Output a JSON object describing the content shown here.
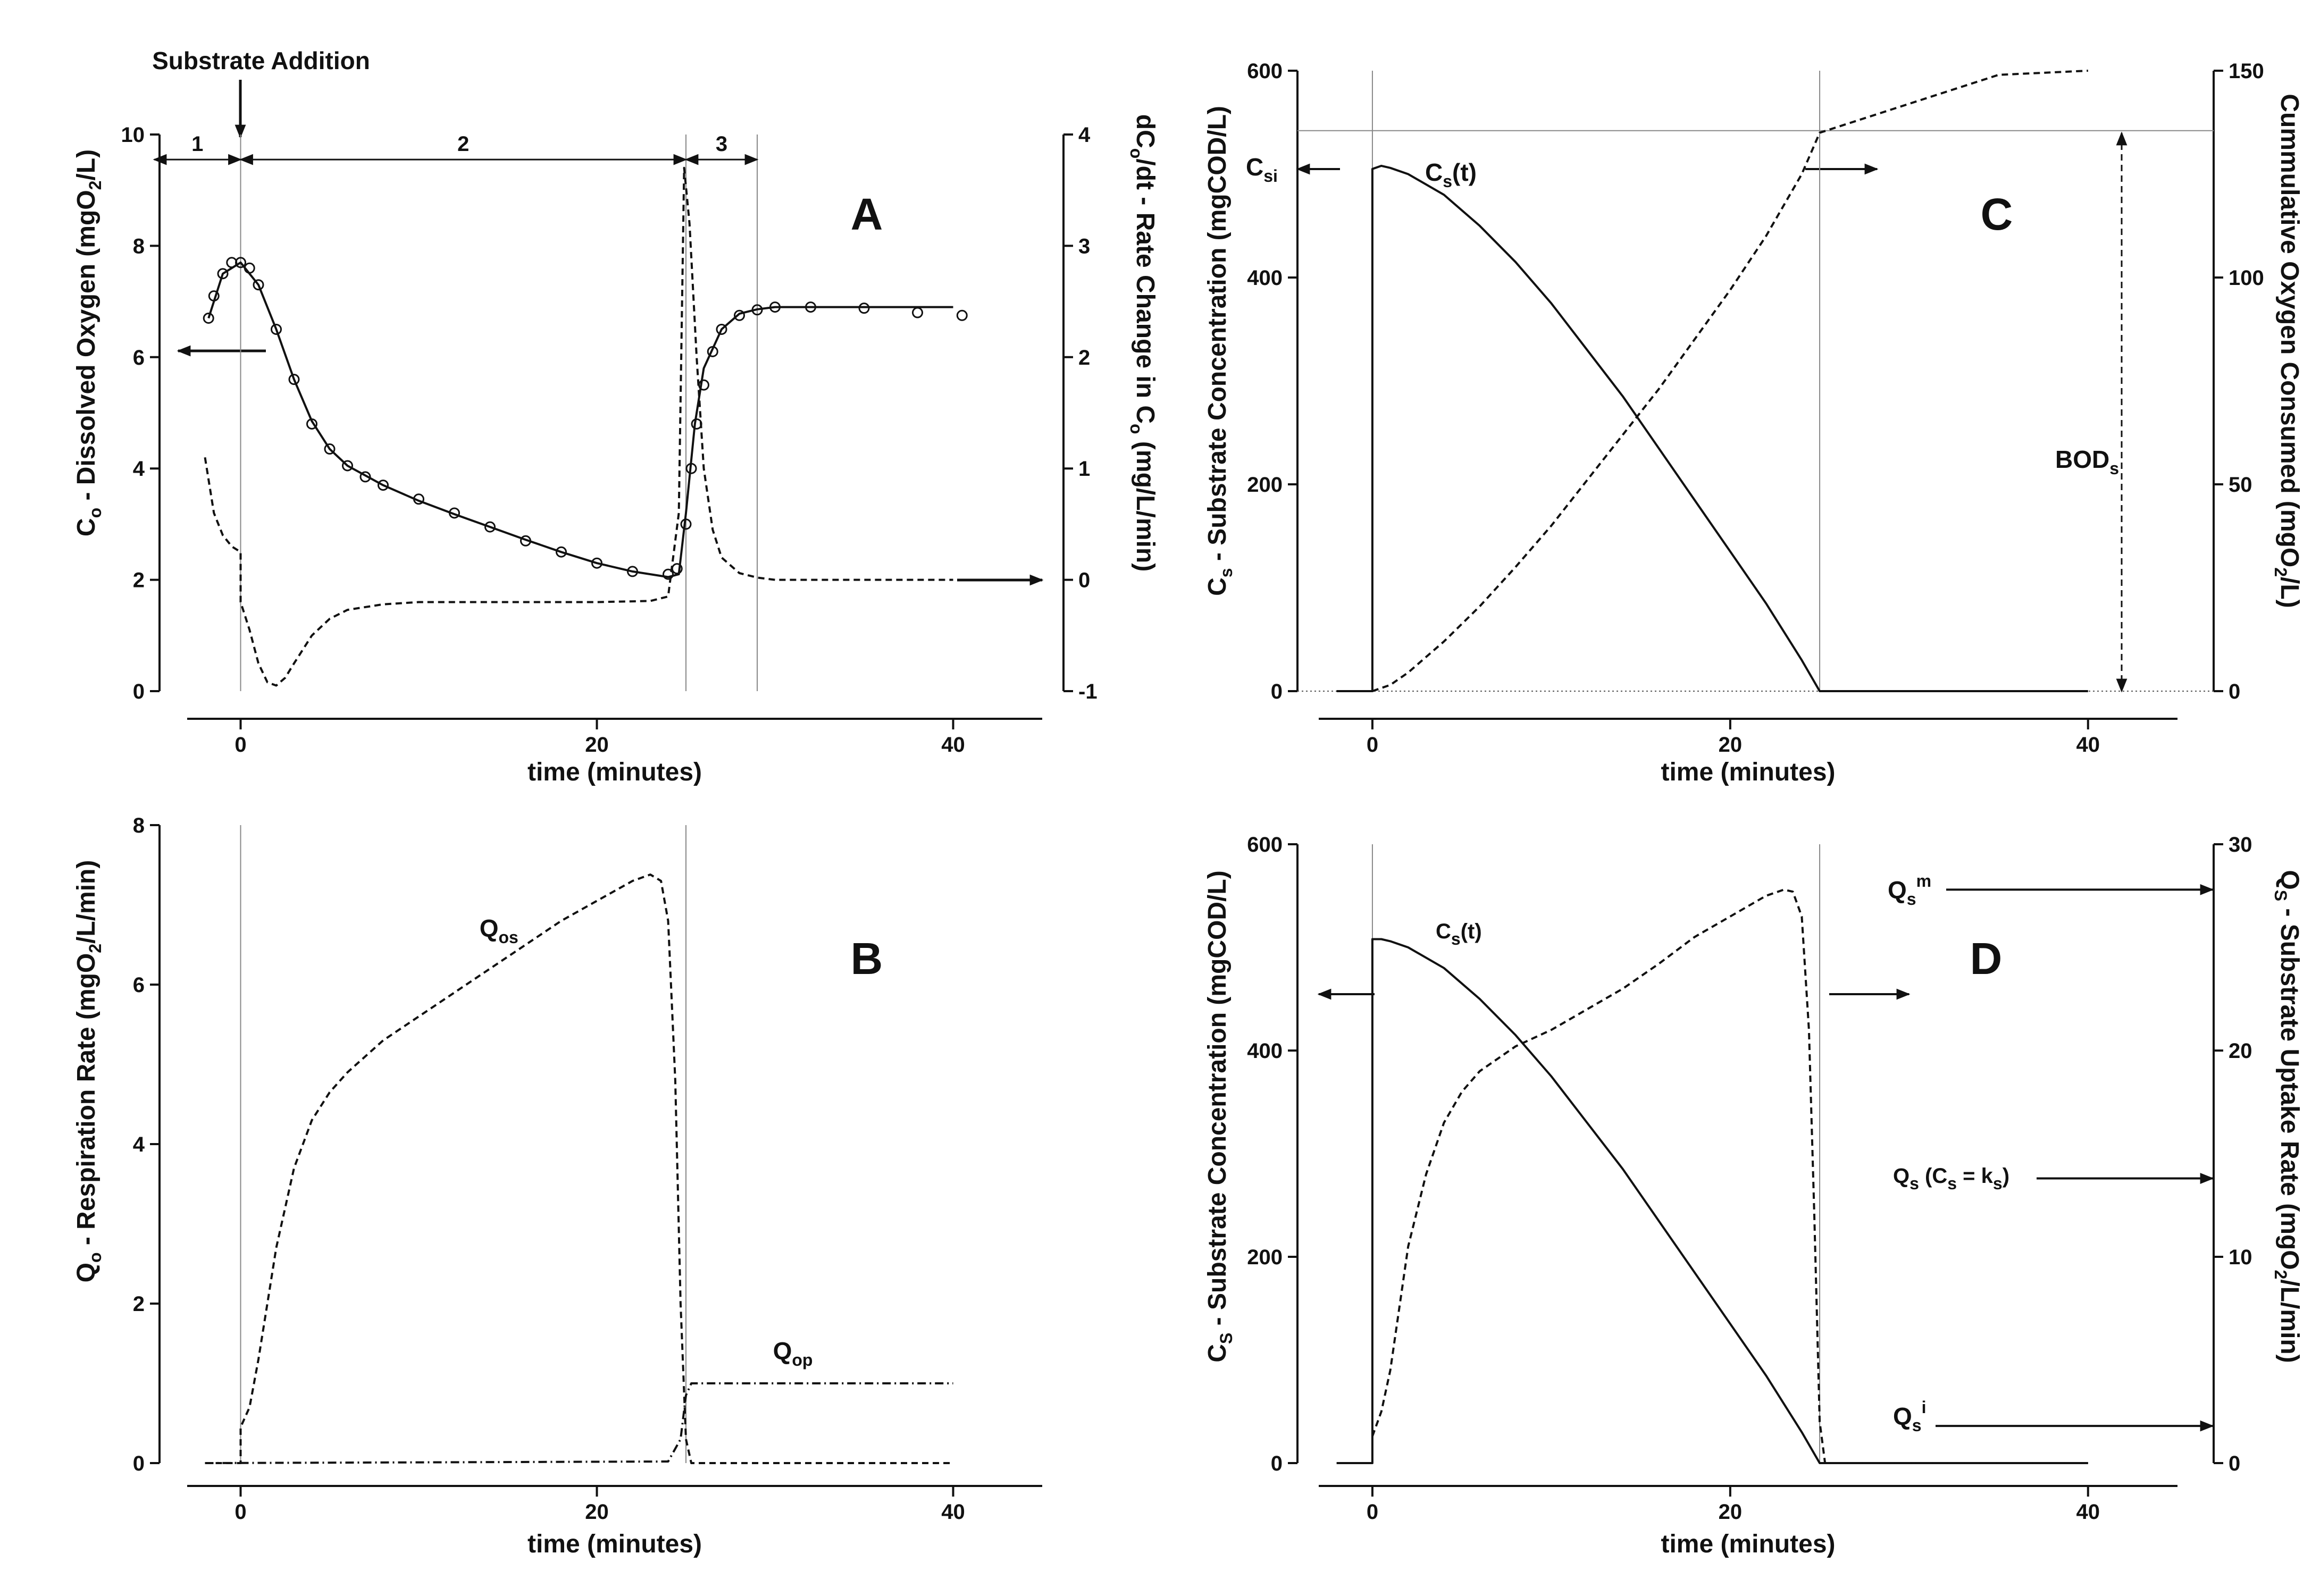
{
  "figure": {
    "arrow_annotation": "Substrate Addition"
  },
  "chart_data": [
    {
      "id": "A",
      "type": "line",
      "panel_label": "A",
      "xlabel": "time (minutes)",
      "ylabel": "C_o - Dissolved Oxygen (mgO_2/L)",
      "ylabel_right": "dC_o/dt - Rate Change in C_o (mg/L/min)",
      "xlim": [
        -3,
        45
      ],
      "ylim": [
        0,
        10
      ],
      "ylim_right": [
        -1,
        4
      ],
      "x_ticks": [
        0,
        20,
        40
      ],
      "y_ticks": [
        0,
        2,
        4,
        6,
        8,
        10
      ],
      "y_ticks_right": [
        -1,
        0,
        1,
        2,
        3,
        4
      ],
      "vlines": [
        0,
        25,
        29
      ],
      "phases": [
        {
          "label": "1",
          "from": -3,
          "to": 0
        },
        {
          "label": "2",
          "from": 0,
          "to": 25
        },
        {
          "label": "3",
          "from": 25,
          "to": 29
        }
      ],
      "series": [
        {
          "name": "C_o measured",
          "style": "circles",
          "axis": "left",
          "x": [
            -1.8,
            -1.5,
            -1,
            -0.5,
            0,
            0.5,
            1,
            2,
            3,
            4,
            5,
            6,
            7,
            8,
            10,
            12,
            14,
            16,
            18,
            20,
            22,
            24,
            24.5,
            25,
            25.3,
            25.6,
            26,
            26.5,
            27,
            28,
            29,
            30,
            32,
            35,
            38,
            40.5
          ],
          "values": [
            6.7,
            7.1,
            7.5,
            7.7,
            7.7,
            7.6,
            7.3,
            6.5,
            5.6,
            4.8,
            4.35,
            4.05,
            3.85,
            3.7,
            3.45,
            3.2,
            2.95,
            2.7,
            2.5,
            2.3,
            2.15,
            2.1,
            2.2,
            3.0,
            4.0,
            4.8,
            5.5,
            6.1,
            6.5,
            6.75,
            6.85,
            6.9,
            6.9,
            6.88,
            6.8,
            6.75
          ]
        },
        {
          "name": "C_o model",
          "style": "solid",
          "axis": "left",
          "x": [
            -1.8,
            -1,
            0,
            1,
            2,
            3,
            4,
            5,
            6,
            8,
            10,
            12,
            14,
            16,
            18,
            20,
            22,
            24,
            24.6,
            25,
            25.5,
            26,
            27,
            28,
            29,
            30,
            35,
            40
          ],
          "values": [
            6.7,
            7.5,
            7.7,
            7.3,
            6.5,
            5.6,
            4.85,
            4.35,
            4.05,
            3.7,
            3.42,
            3.18,
            2.95,
            2.72,
            2.5,
            2.3,
            2.15,
            2.05,
            2.1,
            3.2,
            4.8,
            5.8,
            6.5,
            6.78,
            6.86,
            6.9,
            6.9,
            6.9
          ]
        },
        {
          "name": "dC_o/dt",
          "style": "dashed",
          "axis": "right",
          "x": [
            -2,
            -1.5,
            -1,
            -0.5,
            0,
            0,
            0.5,
            1,
            1.5,
            2,
            2.5,
            3,
            4,
            5,
            6,
            8,
            10,
            15,
            20,
            23,
            24,
            24.6,
            24.9,
            25.2,
            25.6,
            26,
            26.5,
            27,
            28,
            29,
            30,
            35,
            40
          ],
          "values": [
            1.1,
            0.6,
            0.4,
            0.3,
            0.25,
            -0.2,
            -0.45,
            -0.75,
            -0.92,
            -0.95,
            -0.88,
            -0.75,
            -0.5,
            -0.35,
            -0.27,
            -0.22,
            -0.2,
            -0.2,
            -0.2,
            -0.19,
            -0.15,
            0.6,
            3.7,
            3.2,
            2.0,
            1.0,
            0.45,
            0.2,
            0.06,
            0.02,
            0.0,
            0.0,
            0.0
          ]
        }
      ]
    },
    {
      "id": "B",
      "type": "line",
      "panel_label": "B",
      "xlabel": "time (minutes)",
      "ylabel": "Q_o - Respiration Rate (mgO_2/L/min)",
      "xlim": [
        -3,
        45
      ],
      "ylim": [
        0,
        8
      ],
      "x_ticks": [
        0,
        20,
        40
      ],
      "y_ticks": [
        0,
        2,
        4,
        6,
        8
      ],
      "vlines": [
        0,
        25
      ],
      "series": [
        {
          "name": "Q_os",
          "style": "dashed",
          "x": [
            -2,
            0,
            0,
            0.5,
            1,
            1.5,
            2,
            3,
            4,
            5,
            6,
            8,
            10,
            12,
            14,
            16,
            18,
            20,
            22,
            23,
            23.6,
            24,
            24.4,
            24.7,
            25,
            25.3,
            30,
            40
          ],
          "values": [
            0,
            0,
            0.45,
            0.7,
            1.3,
            2.0,
            2.7,
            3.7,
            4.3,
            4.65,
            4.9,
            5.3,
            5.6,
            5.9,
            6.2,
            6.5,
            6.8,
            7.05,
            7.3,
            7.38,
            7.3,
            6.8,
            4.8,
            2.0,
            0.3,
            0,
            0,
            0
          ]
        },
        {
          "name": "Q_op",
          "style": "dashdot",
          "x": [
            -2,
            24,
            24.7,
            25,
            25.3,
            40
          ],
          "values": [
            0,
            0.02,
            0.3,
            0.85,
            1.0,
            1.0
          ]
        }
      ],
      "annotations": [
        {
          "text": "Q_os",
          "x": 14.5,
          "y": 6.6
        },
        {
          "text": "Q_op",
          "x": 31,
          "y": 1.3
        }
      ]
    },
    {
      "id": "C",
      "type": "line",
      "panel_label": "C",
      "xlabel": "time (minutes)",
      "ylabel": "C_s - Substrate Concentration (mgCOD/L)",
      "ylabel_right": "Cummulative Oxygen Consumed (mgO_2/L)",
      "xlim": [
        -3,
        45
      ],
      "ylim": [
        0,
        600
      ],
      "ylim_right": [
        0,
        150
      ],
      "x_ticks": [
        0,
        20,
        40
      ],
      "y_ticks": [
        0,
        200,
        400,
        600
      ],
      "y_ticks_right": [
        0,
        50,
        100,
        150
      ],
      "vlines": [
        0,
        25
      ],
      "hline": 542,
      "series": [
        {
          "name": "C_s(t)",
          "style": "solid",
          "axis": "left",
          "x": [
            -2,
            0,
            0,
            0.5,
            1,
            2,
            4,
            6,
            8,
            10,
            12,
            14,
            16,
            18,
            20,
            22,
            24,
            25,
            30,
            40
          ],
          "values": [
            0,
            0,
            505,
            508,
            506,
            500,
            480,
            450,
            415,
            375,
            330,
            285,
            235,
            185,
            135,
            85,
            30,
            0,
            0,
            0
          ]
        },
        {
          "name": "Cumulative O_2",
          "style": "dashed",
          "axis": "right",
          "x": [
            0,
            1,
            2,
            4,
            6,
            8,
            10,
            12,
            14,
            16,
            18,
            20,
            22,
            24,
            25,
            30,
            35,
            40
          ],
          "values": [
            0,
            1.5,
            4.5,
            12,
            20.5,
            30,
            40,
            51,
            62,
            73,
            85,
            97,
            110,
            125,
            135,
            142,
            149,
            150
          ]
        }
      ],
      "annotations": [
        {
          "text": "C_si"
        },
        {
          "text": "C_s(t)"
        },
        {
          "text": "BOD_s"
        }
      ]
    },
    {
      "id": "D",
      "type": "line",
      "panel_label": "D",
      "xlabel": "time (minutes)",
      "ylabel": "C_S - Substrate Concentration (mgCOD/L)",
      "ylabel_right": "Q_S - Substrate Uptake Rate (mgO_2/L/min)",
      "xlim": [
        -3,
        45
      ],
      "ylim": [
        0,
        600
      ],
      "ylim_right": [
        0,
        30
      ],
      "x_ticks": [
        0,
        20,
        40
      ],
      "y_ticks": [
        0,
        200,
        400,
        600
      ],
      "y_ticks_right": [
        0,
        10,
        20,
        30
      ],
      "vlines": [
        0,
        25
      ],
      "series": [
        {
          "name": "C_s(t)",
          "style": "solid",
          "axis": "left",
          "x": [
            -2,
            0,
            0,
            0.5,
            1,
            2,
            4,
            6,
            8,
            10,
            12,
            14,
            16,
            18,
            20,
            22,
            24,
            25,
            30,
            40
          ],
          "values": [
            0,
            0,
            508,
            508,
            506,
            500,
            480,
            450,
            415,
            375,
            330,
            285,
            235,
            185,
            135,
            85,
            30,
            0,
            0,
            0
          ]
        },
        {
          "name": "Q_s",
          "style": "dashed",
          "axis": "right",
          "x": [
            0,
            0.5,
            1,
            1.5,
            2,
            3,
            4,
            5,
            6,
            8,
            10,
            12,
            14,
            16,
            18,
            20,
            22,
            23,
            23.5,
            24,
            24.4,
            24.7,
            25,
            25.3,
            30,
            40
          ],
          "values": [
            1.3,
            2.5,
            4.5,
            7.5,
            10.5,
            14.0,
            16.5,
            18.0,
            19.0,
            20.2,
            21.0,
            22.0,
            23.0,
            24.2,
            25.5,
            26.5,
            27.5,
            27.8,
            27.7,
            26.5,
            21.0,
            12.0,
            2.0,
            0,
            0,
            0
          ]
        }
      ],
      "annotations": [
        {
          "text": "C_s(t)"
        },
        {
          "text": "Q_s^m",
          "y_right": 27.8
        },
        {
          "text": "Q_s (C_s = k_s)",
          "y_right": 13.8
        },
        {
          "text": "Q_s^i",
          "y_right": 1.8
        }
      ]
    }
  ]
}
